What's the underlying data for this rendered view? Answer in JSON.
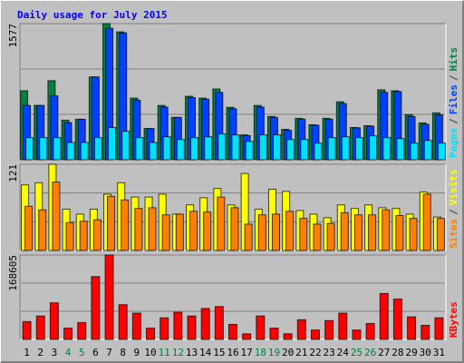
{
  "chart_data": {
    "type": "bar",
    "title": "Daily usage for July 2015",
    "categories": [
      "1",
      "2",
      "3",
      "4",
      "5",
      "6",
      "7",
      "8",
      "9",
      "10",
      "11",
      "12",
      "13",
      "14",
      "15",
      "16",
      "17",
      "18",
      "19",
      "20",
      "21",
      "22",
      "23",
      "24",
      "25",
      "26",
      "27",
      "28",
      "29",
      "30",
      "31"
    ],
    "category_colors": [
      "#000000",
      "#000000",
      "#000000",
      "#008040",
      "#008040",
      "#000000",
      "#000000",
      "#000000",
      "#000000",
      "#000000",
      "#008040",
      "#008040",
      "#000000",
      "#000000",
      "#000000",
      "#000000",
      "#000000",
      "#008040",
      "#008040",
      "#000000",
      "#000000",
      "#000000",
      "#000000",
      "#000000",
      "#008040",
      "#008040",
      "#000000",
      "#000000",
      "#000000",
      "#000000",
      "#000000"
    ],
    "legend_separator": "/",
    "panels": [
      {
        "ylim": [
          0,
          1577
        ],
        "yticks": [
          1577
        ],
        "series": [
          {
            "name": "Hits",
            "color": "#008040",
            "values": [
              799,
              629,
              916,
              458,
              469,
              959,
              1577,
              1481,
              714,
              362,
              629,
              490,
              735,
              714,
              820,
              607,
              288,
              629,
              501,
              352,
              480,
              405,
              480,
              671,
              373,
              394,
              810,
              799,
              522,
              426,
              543
            ]
          },
          {
            "name": "Files",
            "color": "#0040ff",
            "values": [
              629,
              629,
              740,
              430,
              469,
              959,
              1524,
              1470,
              690,
              362,
              610,
              490,
              720,
              700,
              780,
              590,
              280,
              610,
              490,
              340,
              470,
              400,
              470,
              650,
              370,
              390,
              780,
              790,
              500,
              410,
              520
            ]
          },
          {
            "name": "Pages",
            "color": "#00e0ff",
            "values": [
              256,
              256,
              256,
              200,
              200,
              256,
              373,
              330,
              256,
              200,
              266,
              234,
              256,
              266,
              299,
              288,
              213,
              288,
              288,
              234,
              234,
              192,
              256,
              266,
              256,
              277,
              256,
              245,
              192,
              224,
              192
            ]
          }
        ]
      },
      {
        "ylim": [
          0,
          121
        ],
        "yticks": [
          121
        ],
        "series": [
          {
            "name": "Visits",
            "color": "#ffff00",
            "values": [
              92,
              95,
              121,
              58,
              51,
              58,
              79,
              95,
              75,
              75,
              79,
              51,
              64,
              74,
              87,
              64,
              108,
              58,
              86,
              83,
              56,
              51,
              46,
              64,
              59,
              64,
              60,
              59,
              51,
              82,
              47
            ]
          },
          {
            "name": "Sites",
            "color": "#ff8000",
            "values": [
              62,
              57,
              96,
              39,
              41,
              43,
              76,
              71,
              59,
              60,
              50,
              51,
              55,
              54,
              75,
              60,
              37,
              50,
              51,
              55,
              45,
              37,
              38,
              53,
              50,
              50,
              57,
              49,
              45,
              79,
              45
            ]
          }
        ]
      },
      {
        "ylim": [
          0,
          168605
        ],
        "yticks": [
          168605
        ],
        "series": [
          {
            "name": "KBytes",
            "color": "#ff0000",
            "values": [
              35600,
              46800,
              73100,
              22500,
              33700,
              125500,
              168605,
              69300,
              52500,
              22500,
              43100,
              54300,
              46800,
              61800,
              65600,
              30000,
              11200,
              46800,
              22500,
              11200,
              39300,
              18700,
              37500,
              52500,
              18700,
              31800,
              91800,
              80600,
              45000,
              28100,
              43100
            ]
          }
        ]
      }
    ]
  }
}
